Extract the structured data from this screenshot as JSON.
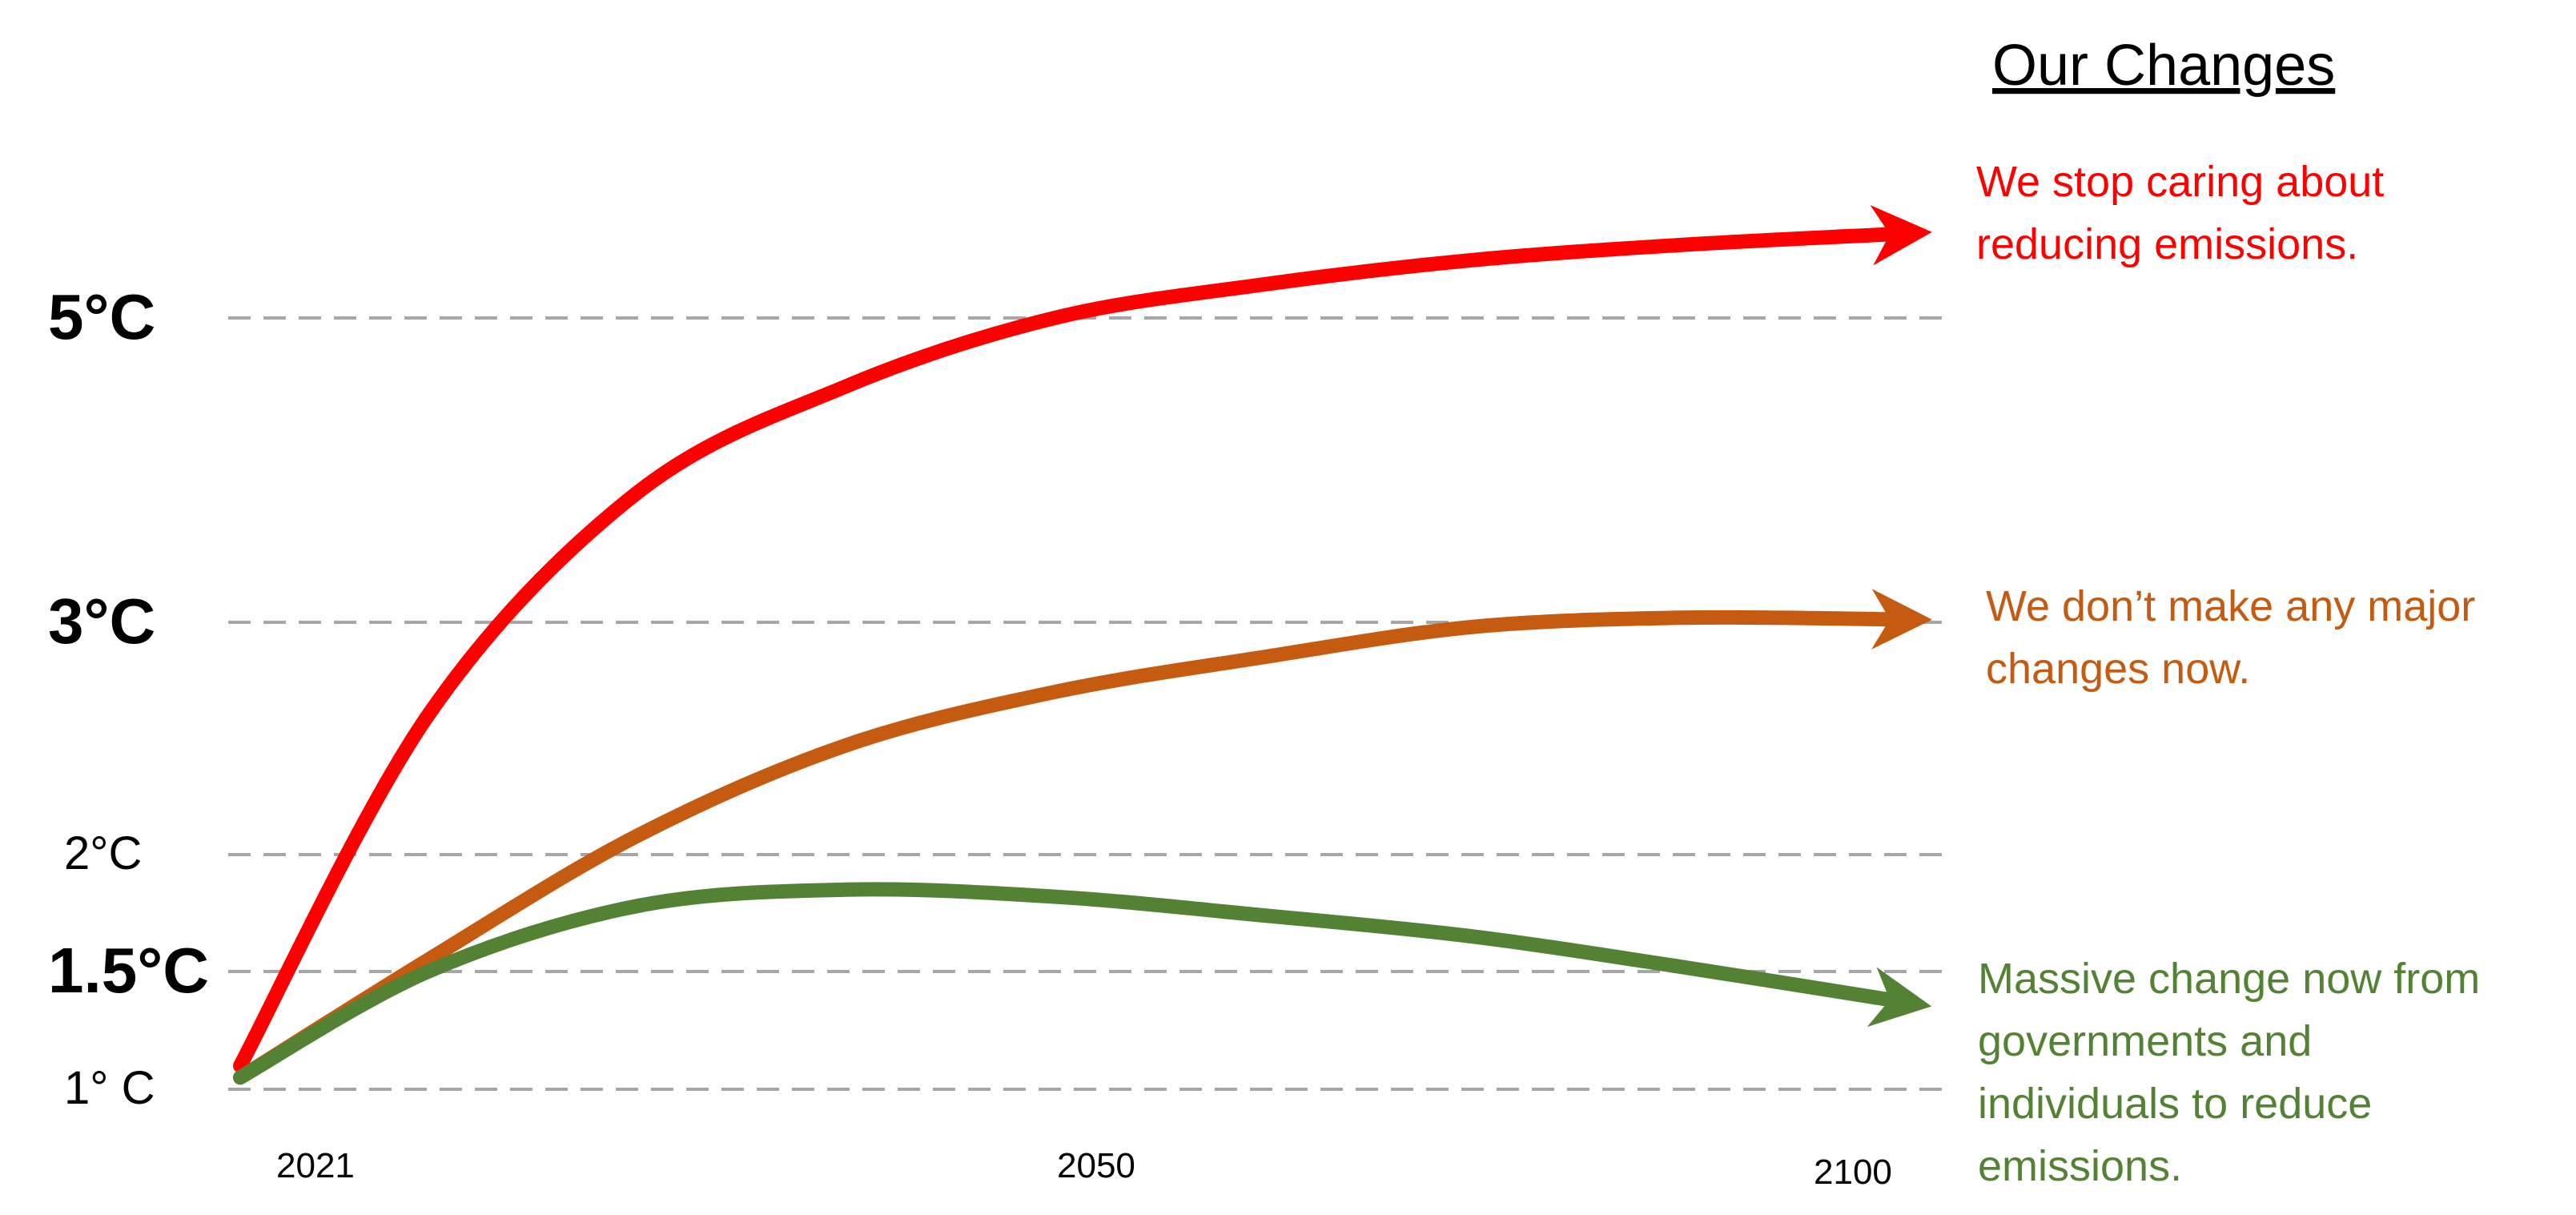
{
  "chart_data": {
    "type": "line",
    "title": "Our Changes",
    "xlabel": "",
    "ylabel": "",
    "grid": "horizontal dashed",
    "x_ticks": [
      "2021",
      "2050",
      "2100"
    ],
    "y_ticks": [
      {
        "value": 1.0,
        "label": "1° C",
        "bold": false
      },
      {
        "value": 1.5,
        "label": "1.5°C",
        "bold": true
      },
      {
        "value": 2.0,
        "label": "2°C",
        "bold": false
      },
      {
        "value": 3.0,
        "label": "3°C",
        "bold": true
      },
      {
        "value": 5.0,
        "label": "5°C",
        "bold": true
      }
    ],
    "series": [
      {
        "color": "#ff0000",
        "annotation": [
          "We stop caring about",
          "reducing emissions."
        ],
        "x": [
          2021,
          2030,
          2040,
          2050,
          2060,
          2070,
          2080,
          2090,
          2100
        ],
        "y": [
          1.1,
          2.6,
          3.85,
          4.55,
          5.0,
          5.22,
          5.38,
          5.48,
          5.55
        ]
      },
      {
        "color": "#c55a11",
        "annotation": [
          "We don’t make any major",
          "changes now."
        ],
        "x": [
          2021,
          2030,
          2040,
          2050,
          2060,
          2070,
          2080,
          2090,
          2100
        ],
        "y": [
          1.05,
          1.55,
          2.08,
          2.47,
          2.7,
          2.85,
          2.98,
          3.03,
          3.02
        ]
      },
      {
        "color": "#548235",
        "annotation": [
          "Massive change now from",
          "governments and",
          "individuals to reduce",
          "emissions."
        ],
        "x": [
          2021,
          2030,
          2040,
          2050,
          2060,
          2070,
          2080,
          2090,
          2100
        ],
        "y": [
          1.05,
          1.5,
          1.78,
          1.85,
          1.82,
          1.74,
          1.65,
          1.52,
          1.38
        ]
      }
    ]
  }
}
